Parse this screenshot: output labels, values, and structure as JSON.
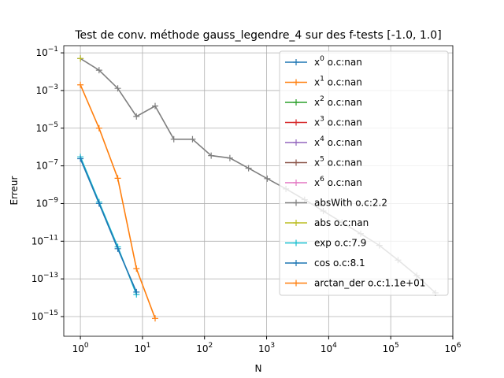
{
  "chart_data": {
    "type": "line",
    "title": "Test de conv. méthode gauss_legendre_4 sur des f-tests [-1.0, 1.0]",
    "xlabel": "N",
    "ylabel": "Erreur",
    "x": [
      1,
      2,
      4,
      8,
      16,
      32,
      64,
      128,
      256,
      512,
      1024,
      2048,
      4096,
      8192,
      16384,
      32768,
      65536,
      131072,
      262144,
      524288
    ],
    "xscale": "log",
    "yscale": "log",
    "grid": true,
    "legend": "upper right",
    "xlim": [
      0.54,
      1000000
    ],
    "ylim": [
      9e-17,
      0.24
    ],
    "xticks": [
      {
        "value": 1,
        "label": "10^0"
      },
      {
        "value": 10,
        "label": "10^1"
      },
      {
        "value": 100,
        "label": "10^2"
      },
      {
        "value": 1000,
        "label": "10^3"
      },
      {
        "value": 10000,
        "label": "10^4"
      },
      {
        "value": 100000,
        "label": "10^5"
      },
      {
        "value": 1000000,
        "label": "10^6"
      }
    ],
    "yticks": [
      {
        "value": 1e-15,
        "label": "10^−15"
      },
      {
        "value": 1e-13,
        "label": "10^−13"
      },
      {
        "value": 1e-11,
        "label": "10^−11"
      },
      {
        "value": 1e-09,
        "label": "10^−9"
      },
      {
        "value": 1e-07,
        "label": "10^−7"
      },
      {
        "value": 1e-05,
        "label": "10^−5"
      },
      {
        "value": 0.001,
        "label": "10^−3"
      },
      {
        "value": 0.1,
        "label": "10^−1"
      }
    ],
    "series": [
      {
        "name": "x^0 o.c:nan",
        "color": "#1f77b4",
        "values": [
          null,
          null,
          null,
          null,
          null,
          null,
          null,
          null,
          null,
          null,
          null,
          null,
          null,
          null,
          null,
          null,
          null,
          null,
          null,
          null
        ]
      },
      {
        "name": "x^1 o.c:nan",
        "color": "#ff7f0e",
        "values": [
          null,
          null,
          null,
          null,
          null,
          null,
          null,
          null,
          null,
          null,
          null,
          null,
          null,
          null,
          null,
          null,
          null,
          null,
          null,
          null
        ]
      },
      {
        "name": "x^2 o.c:nan",
        "color": "#2ca02c",
        "values": [
          null,
          null,
          null,
          null,
          null,
          null,
          null,
          null,
          null,
          null,
          null,
          null,
          null,
          null,
          null,
          null,
          null,
          null,
          null,
          null
        ]
      },
      {
        "name": "x^3 o.c:nan",
        "color": "#d62728",
        "values": [
          null,
          null,
          null,
          null,
          null,
          null,
          null,
          null,
          null,
          null,
          null,
          null,
          null,
          null,
          null,
          null,
          null,
          null,
          null,
          null
        ]
      },
      {
        "name": "x^4 o.c:nan",
        "color": "#9467bd",
        "values": [
          null,
          null,
          null,
          null,
          null,
          null,
          null,
          null,
          null,
          null,
          null,
          null,
          null,
          null,
          null,
          null,
          null,
          null,
          null,
          null
        ]
      },
      {
        "name": "x^5 o.c:nan",
        "color": "#8c564b",
        "values": [
          null,
          null,
          null,
          null,
          null,
          null,
          null,
          null,
          null,
          null,
          null,
          null,
          null,
          null,
          null,
          null,
          null,
          null,
          null,
          null
        ]
      },
      {
        "name": "x^6 o.c:nan",
        "color": "#e377c2",
        "values": [
          null,
          null,
          null,
          null,
          null,
          null,
          null,
          null,
          null,
          null,
          null,
          null,
          null,
          null,
          null,
          null,
          null,
          null,
          null,
          null
        ]
      },
      {
        "name": "absWith o.c:2.2",
        "color": "#7f7f7f",
        "values": [
          0.05,
          0.012,
          0.0013,
          4.2e-05,
          0.00015,
          2.6e-06,
          2.6e-06,
          3.5e-07,
          2.6e-07,
          7.5e-08,
          2.1e-08,
          6e-09,
          1.6e-09,
          4e-10,
          1e-10,
          2.5e-11,
          6e-12,
          1e-12,
          1.5e-13,
          1.8e-14
        ]
      },
      {
        "name": "abs o.c:nan",
        "color": "#bcbd22",
        "values": [
          0.05,
          null,
          null,
          null,
          null,
          null,
          null,
          null,
          null,
          null,
          null,
          null,
          null,
          null,
          null,
          null,
          null,
          null,
          null,
          null
        ]
      },
      {
        "name": "exp o.c:7.9",
        "color": "#17becf",
        "values": [
          3e-07,
          1.2e-09,
          5e-12,
          1.5e-14,
          null,
          null,
          null,
          null,
          null,
          null,
          null,
          null,
          null,
          null,
          null,
          null,
          null,
          null,
          null,
          null
        ]
      },
      {
        "name": "cos o.c:8.1",
        "color": "#1f77b4",
        "values": [
          2.4e-07,
          1e-09,
          4e-12,
          2e-14,
          null,
          null,
          null,
          null,
          null,
          null,
          null,
          null,
          null,
          null,
          null,
          null,
          null,
          null,
          null,
          null
        ]
      },
      {
        "name": "arctan_der o.c:1.1e+01",
        "color": "#ff7f0e",
        "values": [
          0.002,
          1e-05,
          2.2e-08,
          3.5e-13,
          8e-16,
          null,
          null,
          null,
          null,
          null,
          null,
          null,
          null,
          null,
          null,
          null,
          null,
          null,
          null,
          null
        ]
      }
    ]
  }
}
